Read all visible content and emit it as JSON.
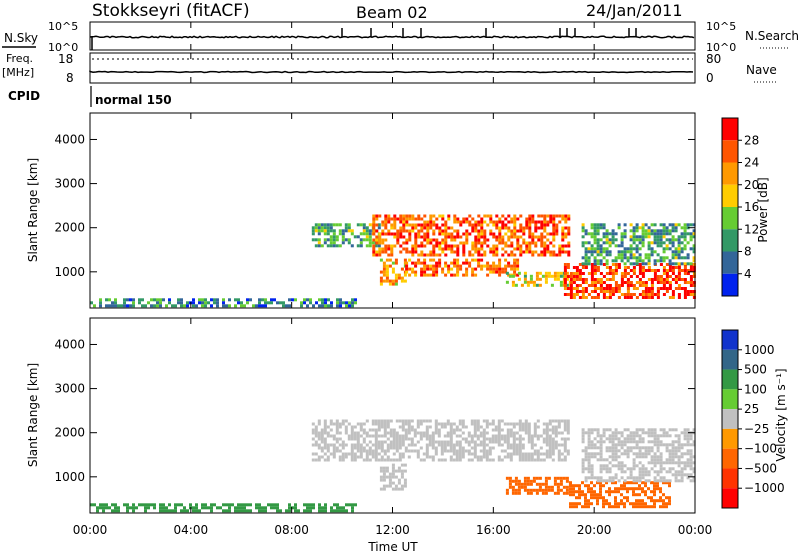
{
  "header": {
    "title": "Stokkseyri (fitACF)",
    "beam": "Beam 02",
    "date": "24/Jan/2011"
  },
  "noise_panel": {
    "left_label": "N.Sky",
    "right_label": "N.Search",
    "left_ticks": [
      "10^5",
      "10^0"
    ],
    "right_ticks": [
      "10^5",
      "10^0"
    ]
  },
  "freq_panel": {
    "left_label": "Freq.",
    "left_unit": "[MHz]",
    "right_label": "Nave",
    "left_ticks": [
      "18",
      "8"
    ],
    "right_ticks": [
      "80",
      "0"
    ]
  },
  "cpid": {
    "label": "CPID",
    "mode": "normal 150"
  },
  "x_axis": {
    "label": "Time UT",
    "ticks": [
      "00:00",
      "04:00",
      "08:00",
      "12:00",
      "16:00",
      "20:00",
      "00:00"
    ]
  },
  "power_panel": {
    "ylabel": "Slant Range [km]",
    "yticks": [
      "4000",
      "3000",
      "2000",
      "1000"
    ],
    "colorbar_label": "Power [dB]",
    "colorbar_ticks": [
      "28",
      "24",
      "20",
      "16",
      "12",
      "8",
      "4"
    ],
    "colors": [
      "#ff0000",
      "#ff5500",
      "#ff9900",
      "#ffcc00",
      "#66cc33",
      "#339966",
      "#336699",
      "#0022ee"
    ]
  },
  "velocity_panel": {
    "ylabel": "Slant Range [km]",
    "yticks": [
      "4000",
      "3000",
      "2000",
      "1000"
    ],
    "colorbar_label": "Velocity [m s⁻¹]",
    "colorbar_ticks": [
      "1000",
      "500",
      "100",
      "25",
      "−25",
      "−100",
      "−500",
      "−1000"
    ],
    "colors": [
      "#1133cc",
      "#336688",
      "#339944",
      "#66cc33",
      "#c0c0c0",
      "#ff9900",
      "#ff6600",
      "#ff3300",
      "#ff0000"
    ]
  },
  "chart_data": [
    {
      "type": "heatmap",
      "title": "Power [dB]",
      "xlabel": "Time UT",
      "ylabel": "Slant Range [km]",
      "x_range_hours": [
        0,
        24
      ],
      "y_range_km": [
        180,
        4600
      ],
      "z_range": [
        0,
        30
      ],
      "regions": [
        {
          "t_start": 0.0,
          "t_end": 10.5,
          "r_min": 200,
          "r_max": 400,
          "value": 8
        },
        {
          "t_start": 8.8,
          "t_end": 11.5,
          "r_min": 1600,
          "r_max": 2100,
          "value": 10
        },
        {
          "t_start": 11.2,
          "t_end": 19.0,
          "r_min": 1400,
          "r_max": 2300,
          "value": 24
        },
        {
          "t_start": 11.5,
          "t_end": 12.5,
          "r_min": 700,
          "r_max": 1300,
          "value": 20
        },
        {
          "t_start": 12.5,
          "t_end": 17.0,
          "r_min": 900,
          "r_max": 1300,
          "value": 22
        },
        {
          "t_start": 16.5,
          "t_end": 19.0,
          "r_min": 700,
          "r_max": 1000,
          "value": 16
        },
        {
          "t_start": 18.8,
          "t_end": 24.0,
          "r_min": 400,
          "r_max": 1200,
          "value": 26
        },
        {
          "t_start": 19.5,
          "t_end": 24.0,
          "r_min": 1200,
          "r_max": 2100,
          "value": 10
        }
      ]
    },
    {
      "type": "heatmap",
      "title": "Velocity [m s⁻¹]",
      "xlabel": "Time UT",
      "ylabel": "Slant Range [km]",
      "x_range_hours": [
        0,
        24
      ],
      "y_range_km": [
        180,
        4600
      ],
      "z_range": [
        -1000,
        1000
      ],
      "regions": [
        {
          "t_start": 0.0,
          "t_end": 10.5,
          "r_min": 200,
          "r_max": 400,
          "value": 100
        },
        {
          "t_start": 8.8,
          "t_end": 19.0,
          "r_min": 1400,
          "r_max": 2300,
          "value": 0
        },
        {
          "t_start": 11.5,
          "t_end": 12.5,
          "r_min": 700,
          "r_max": 1300,
          "value": 0
        },
        {
          "t_start": 16.5,
          "t_end": 19.0,
          "r_min": 600,
          "r_max": 1000,
          "value": -200
        },
        {
          "t_start": 19.0,
          "t_end": 23.0,
          "r_min": 300,
          "r_max": 900,
          "value": -300
        },
        {
          "t_start": 19.5,
          "t_end": 24.0,
          "r_min": 900,
          "r_max": 2100,
          "value": 0
        }
      ]
    }
  ]
}
